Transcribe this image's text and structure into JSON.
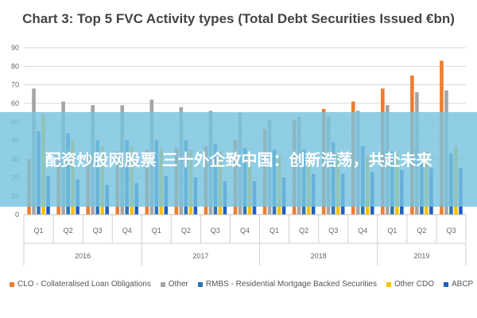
{
  "chart_data": {
    "type": "bar",
    "title": "Chart 3: Top 5 FVC Activity types (Total Debt Securities Issued €bn)",
    "xlabel": "",
    "ylabel": "",
    "ylim": [
      0,
      90
    ],
    "yticks": [
      "0",
      "10",
      "20",
      "30",
      "40",
      "50",
      "60",
      "70",
      "80",
      "90"
    ],
    "grid": true,
    "legend_position": "bottom",
    "categories": [
      "Q1",
      "Q2",
      "Q3",
      "Q4",
      "Q1",
      "Q2",
      "Q3",
      "Q4",
      "Q1",
      "Q2",
      "Q3",
      "Q4",
      "Q1",
      "Q2",
      "Q3"
    ],
    "year_groups": [
      {
        "label": "2016",
        "count": 4
      },
      {
        "label": "2017",
        "count": 4
      },
      {
        "label": "2018",
        "count": 4
      },
      {
        "label": "2019",
        "count": 3
      }
    ],
    "series": [
      {
        "name": "CLO - Collateralised Loan Obligations",
        "color": "#ed7d31",
        "values": [
          30,
          32,
          33,
          34,
          35,
          36,
          37,
          40,
          46,
          51,
          57,
          61,
          68,
          75,
          83
        ]
      },
      {
        "name": "Other",
        "color": "#a5a5a5",
        "values": [
          68,
          61,
          59,
          59,
          62,
          58,
          56,
          55,
          51,
          53,
          53,
          56,
          59,
          66,
          67
        ]
      },
      {
        "name": "RMBS - Residential Mortgage Backed Securities",
        "color": "#2e75b6",
        "values": [
          45,
          44,
          40,
          40,
          40,
          40,
          38,
          36,
          35,
          35,
          39,
          37,
          34,
          31,
          33
        ]
      },
      {
        "name": "Other CDO",
        "color": "#ffc000",
        "values": [
          54,
          40,
          37,
          37,
          36,
          35,
          34,
          33,
          32,
          32,
          32,
          32,
          33,
          34,
          37
        ]
      },
      {
        "name": "ABCP",
        "color": "#1f5fbf",
        "values": [
          21,
          19,
          16,
          17,
          21,
          20,
          18,
          18,
          20,
          22,
          22,
          23,
          24,
          25,
          25
        ]
      }
    ]
  },
  "overlay": {
    "banner_text": "配资炒股网股票 三十外企致中国：创新浩荡，共赴未来"
  }
}
